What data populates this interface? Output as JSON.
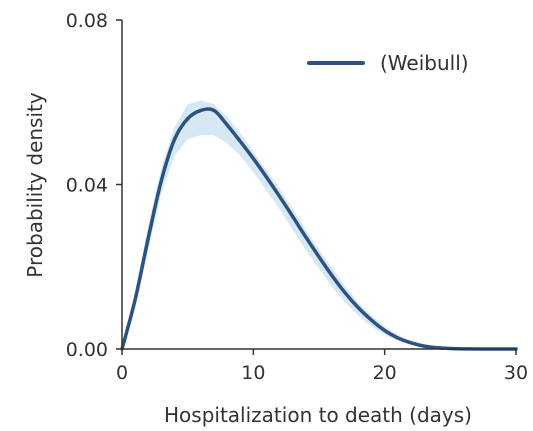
{
  "chart_data": {
    "type": "line",
    "title": "",
    "xlabel": "Hospitalization to death (days)",
    "ylabel": "Probability density",
    "xlim": [
      0,
      30
    ],
    "ylim": [
      0,
      0.08
    ],
    "x_ticks": [
      {
        "value": 0,
        "label": "0"
      },
      {
        "value": 10,
        "label": "10"
      },
      {
        "value": 20,
        "label": "20"
      },
      {
        "value": 30,
        "label": "30"
      }
    ],
    "y_ticks": [
      {
        "value": 0,
        "label": "0.00"
      },
      {
        "value": 0.04,
        "label": "0.04"
      },
      {
        "value": 0.08,
        "label": "0.08"
      }
    ],
    "grid": false,
    "legend": {
      "position": "top-right",
      "entries": [
        "(Weibull)"
      ]
    },
    "colors": {
      "line": "#2b5282",
      "band": "#d6e8f3",
      "axis": "#333333"
    },
    "series": [
      {
        "name": "(Weibull)",
        "x": [
          0,
          1,
          2,
          3,
          4,
          5,
          6,
          7,
          8,
          9,
          10,
          11,
          12,
          13,
          14,
          15,
          16,
          17,
          18,
          19,
          20,
          21,
          22,
          23,
          24,
          25,
          26,
          28,
          30
        ],
        "y": [
          0,
          0.012,
          0.027,
          0.041,
          0.051,
          0.056,
          0.058,
          0.058,
          0.0545,
          0.0505,
          0.0463,
          0.0418,
          0.0371,
          0.0322,
          0.0272,
          0.0224,
          0.0178,
          0.0136,
          0.01,
          0.007,
          0.0045,
          0.0027,
          0.0015,
          0.0007,
          0.0003,
          0.00012,
          4e-05,
          0.0,
          0.0
        ],
        "lower": [
          0,
          0.01,
          0.024,
          0.038,
          0.047,
          0.051,
          0.052,
          0.052,
          0.05,
          0.047,
          0.043,
          0.0385,
          0.034,
          0.029,
          0.024,
          0.0195,
          0.015,
          0.0113,
          0.008,
          0.0055,
          0.0035,
          0.0021,
          0.0011,
          0.0005,
          0.0002,
          8e-05,
          2e-05,
          0.0,
          0.0
        ],
        "upper": [
          0,
          0.014,
          0.03,
          0.044,
          0.054,
          0.0595,
          0.0605,
          0.0595,
          0.0565,
          0.0525,
          0.048,
          0.0435,
          0.039,
          0.034,
          0.029,
          0.0242,
          0.0196,
          0.0152,
          0.0113,
          0.0082,
          0.0055,
          0.0034,
          0.002,
          0.001,
          0.0005,
          0.0002,
          7e-05,
          0.0,
          0.0
        ]
      }
    ]
  }
}
